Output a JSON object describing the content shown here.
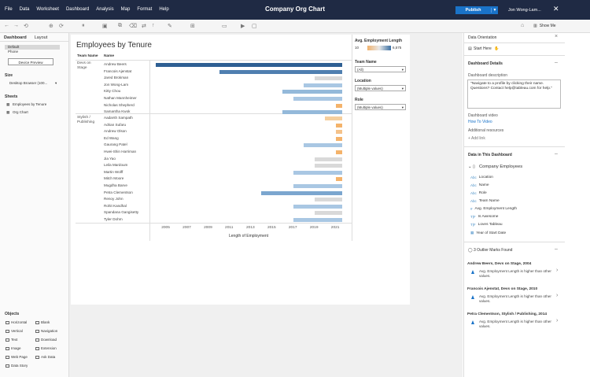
{
  "menu": [
    "File",
    "Data",
    "Worksheet",
    "Dashboard",
    "Analysis",
    "Map",
    "Format",
    "Help"
  ],
  "title": "Company Org Chart",
  "publish_label": "Publish",
  "user": "Jon Wong-Lam...",
  "show_me": "Show Me",
  "left": {
    "tabs": [
      "Dashboard",
      "Layout"
    ],
    "device_default": "Default",
    "device_phone": "Phone",
    "device_preview": "Device Preview",
    "size_title": "Size",
    "size_value": "Desktop Browser (100...",
    "sheets_title": "Sheets",
    "sheets": [
      "Employees by Tenure",
      "Org Chart"
    ],
    "objects_title": "Objects",
    "objects": [
      "Horizontal",
      "Blank",
      "Vertical",
      "Navigation",
      "Text",
      "Download",
      "Image",
      "Extension",
      "Web Page",
      "Ask Data",
      "Data Story"
    ]
  },
  "viz": {
    "title": "Employees by Tenure",
    "col_team": "Team Name",
    "col_name": "Name",
    "teams": [
      "Devs on Stage",
      "Stylish / Publishing"
    ],
    "axis_label": "Length of Employment",
    "ticks": [
      "2005",
      "2007",
      "2009",
      "2011",
      "2013",
      "2015",
      "2017",
      "2019",
      "2021"
    ]
  },
  "legend": {
    "title": "Avg. Employment Length",
    "min": "10",
    "max": "6,575"
  },
  "filters": [
    {
      "label": "Team Name",
      "value": "(All)"
    },
    {
      "label": "Location",
      "value": "(Multiple values)"
    },
    {
      "label": "Role",
      "value": "(Multiple values)"
    }
  ],
  "right": {
    "orientation": "Data Orientation",
    "start_here": "Start Here",
    "details": "Dashboard Details",
    "desc_label": "Dashboard description",
    "desc_text": "\"Navigate to a profile by clicking their name. Questions? Contact help@tableau.com for help.\"",
    "video_label": "Dashboard video",
    "video_link": "How To Video",
    "resources": "Additional resources",
    "add_link": "+ Add link",
    "in_dash": "Data in This Dashboard",
    "source": "Company Employees",
    "fields": [
      "Location",
      "Name",
      "Role",
      "Team Name",
      "Avg. Employment Length",
      "Is Awesome",
      "Loves Tableau",
      "Year of Start Date"
    ],
    "outliers_title": "3 Outlier Marks Found",
    "outliers": [
      {
        "title": "Andrew Beers, Devs on Stage, 2004",
        "desc": "Avg. Employment Length is higher than other values."
      },
      {
        "title": "Francois Ajenstat, Devs on Stage, 2010",
        "desc": "Avg. Employment Length is higher than other values."
      },
      {
        "title": "Petra Clementson, Stylish / Publishing, 2014",
        "desc": "Avg. Employment Length is higher than other values."
      }
    ]
  },
  "chart_data": {
    "type": "bar",
    "title": "Employees by Tenure",
    "xlabel": "Length of Employment",
    "xlim": [
      2003.5,
      2022.5
    ],
    "series": [
      {
        "team": "Devs on Stage",
        "rows": [
          {
            "name": "Andrew Beers",
            "start": 2004,
            "color": "#2e5f93"
          },
          {
            "name": "Francois Ajenstat",
            "start": 2010,
            "color": "#4f7fb0"
          },
          {
            "name": "Jared Brokman",
            "start": 2019,
            "color": "#d9d9d9"
          },
          {
            "name": "Jon Wong-Lam",
            "start": 2018,
            "color": "#a9c7e3"
          },
          {
            "name": "Kitty Chou",
            "start": 2016,
            "color": "#94b9da"
          },
          {
            "name": "Nathan Mannheimer",
            "start": 2017,
            "color": "#a9c7e3"
          },
          {
            "name": "Nicholas Shepherd",
            "start": 2021,
            "color": "#f4b36b"
          },
          {
            "name": "Samantha Kwok",
            "start": 2016,
            "color": "#94b9da"
          }
        ]
      },
      {
        "team": "Stylish / Publishing",
        "rows": [
          {
            "name": "Aadarsh Sampath",
            "start": 2020,
            "color": "#f5cf9e"
          },
          {
            "name": "Adrian Sufaru",
            "start": 2021,
            "color": "#f4b36b"
          },
          {
            "name": "Andrew Olson",
            "start": 2021,
            "color": "#f4c28a"
          },
          {
            "name": "Ed Wang",
            "start": 2021,
            "color": "#f4b36b"
          },
          {
            "name": "Gaurang Patel",
            "start": 2018,
            "color": "#a9c7e3"
          },
          {
            "name": "Hwei-Shin Harriman",
            "start": 2021,
            "color": "#f4b36b"
          },
          {
            "name": "Jia Yao",
            "start": 2019,
            "color": "#d9d9d9"
          },
          {
            "name": "Leila Mardoum",
            "start": 2019,
            "color": "#d9d9d9"
          },
          {
            "name": "Martin Wolff",
            "start": 2017,
            "color": "#a9c7e3"
          },
          {
            "name": "Mitch Moore",
            "start": 2021,
            "color": "#f4b36b"
          },
          {
            "name": "Mugdha Barve",
            "start": 2017,
            "color": "#a9c7e3"
          },
          {
            "name": "Petra Clementson",
            "start": 2014,
            "color": "#7ba6cf"
          },
          {
            "name": "Renoy John",
            "start": 2019,
            "color": "#d9d9d9"
          },
          {
            "name": "Rohit Kandhal",
            "start": 2017,
            "color": "#a9c7e3"
          },
          {
            "name": "Spandana Gangisetty",
            "start": 2019,
            "color": "#d9d9d9"
          },
          {
            "name": "Tyler Dohrn",
            "start": 2017,
            "color": "#a9c7e3"
          }
        ]
      }
    ]
  }
}
